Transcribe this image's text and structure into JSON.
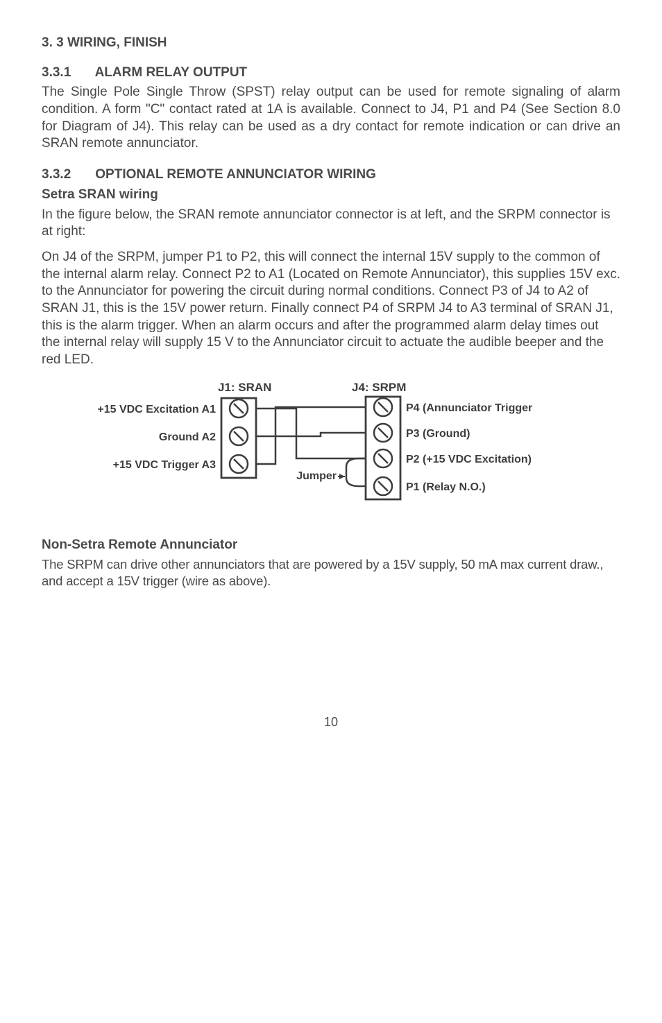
{
  "section_heading": "3. 3 WIRING, FINISH",
  "s331": {
    "num": "3.3.1",
    "title": "ALARM RELAY OUTPUT",
    "body": "The Single Pole Single Throw (SPST) relay output can be used for remote signaling of alarm condition. A form \"C\" contact rated at 1A is available. Connect to J4, P1 and P4 (See Section 8.0 for Diagram of J4). This relay can be used as a dry contact for remote indication or can drive an SRAN remote annunciator."
  },
  "s332": {
    "num": "3.3.2",
    "title": "OPTIONAL REMOTE ANNUNCIATOR WIRING",
    "sub1_title": "Setra SRAN wiring",
    "sub1_p1": "In the figure below, the SRAN remote annunciator connector is at left, and the SRPM connector is at right:",
    "sub1_p2": "On J4 of the SRPM, jumper P1 to P2, this will connect the internal 15V supply to the common of the internal alarm relay. Connect P2 to A1 (Located on Remote Annunciator), this supplies 15V exc. to the Annunciator for powering the circuit during normal conditions. Connect P3 of J4 to A2 of SRAN J1, this is the 15V power return. Finally connect P4 of SRPM J4 to A3 terminal of SRAN J1, this is the alarm trigger. When an alarm occurs and after the programmed alarm delay times out the internal relay will supply 15 V to the Annunciator circuit to actuate the audible beeper and the red LED.",
    "sub2_title": "Non-Setra Remote Annunciator",
    "sub2_p1": "The SRPM can drive other annunciators that are powered by a 15V supply, 50 mA max current draw., and accept a 15V trigger (wire as above)."
  },
  "diagram": {
    "j1_title": "J1: SRAN",
    "j4_title": "J4: SRPM",
    "left_labels": [
      "+15 VDC Excitation A1",
      "Ground A2",
      "+15 VDC Trigger A3"
    ],
    "right_labels": [
      "P4 (Annunciator Trigger",
      "P3 (Ground)",
      "P2 (+15 VDC Excitation)",
      "P1 (Relay N.O.)"
    ],
    "jumper_label": "Jumper",
    "stroke": "#3d3d3d",
    "font": "bold 17px 'Segoe UI', 'Myriad Pro', Arial, sans-serif",
    "font_small": "bold 16px 'Segoe UI', 'Myriad Pro', Arial, sans-serif"
  },
  "page_number": "10"
}
